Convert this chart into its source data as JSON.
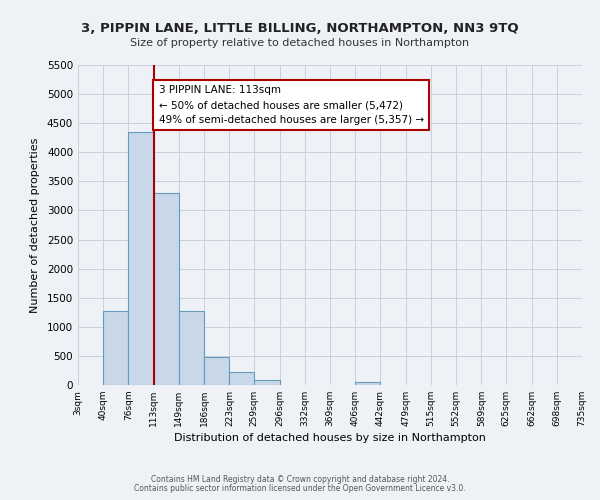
{
  "title": "3, PIPPIN LANE, LITTLE BILLING, NORTHAMPTON, NN3 9TQ",
  "subtitle": "Size of property relative to detached houses in Northampton",
  "xlabel": "Distribution of detached houses by size in Northampton",
  "ylabel": "Number of detached properties",
  "bin_edges": [
    3,
    40,
    76,
    113,
    149,
    186,
    223,
    259,
    296,
    332,
    369,
    406,
    442,
    479,
    515,
    552,
    589,
    625,
    662,
    698,
    735
  ],
  "bar_heights": [
    0,
    1270,
    4350,
    3300,
    1270,
    480,
    220,
    90,
    0,
    0,
    0,
    50,
    0,
    0,
    0,
    0,
    0,
    0,
    0,
    0
  ],
  "bar_color": "#c8d8e8",
  "bar_edge_color": "#6699bb",
  "property_size": 113,
  "vline_color": "#aa0000",
  "annotation_title": "3 PIPPIN LANE: 113sqm",
  "annotation_line1": "← 50% of detached houses are smaller (5,472)",
  "annotation_line2": "49% of semi-detached houses are larger (5,357) →",
  "annotation_box_color": "white",
  "annotation_box_edge": "#aa0000",
  "ylim": [
    0,
    5500
  ],
  "yticks": [
    0,
    500,
    1000,
    1500,
    2000,
    2500,
    3000,
    3500,
    4000,
    4500,
    5000,
    5500
  ],
  "footer1": "Contains HM Land Registry data © Crown copyright and database right 2024.",
  "footer2": "Contains public sector information licensed under the Open Government Licence v3.0.",
  "bg_color": "#eef2f7",
  "grid_color": "#c8d0de"
}
